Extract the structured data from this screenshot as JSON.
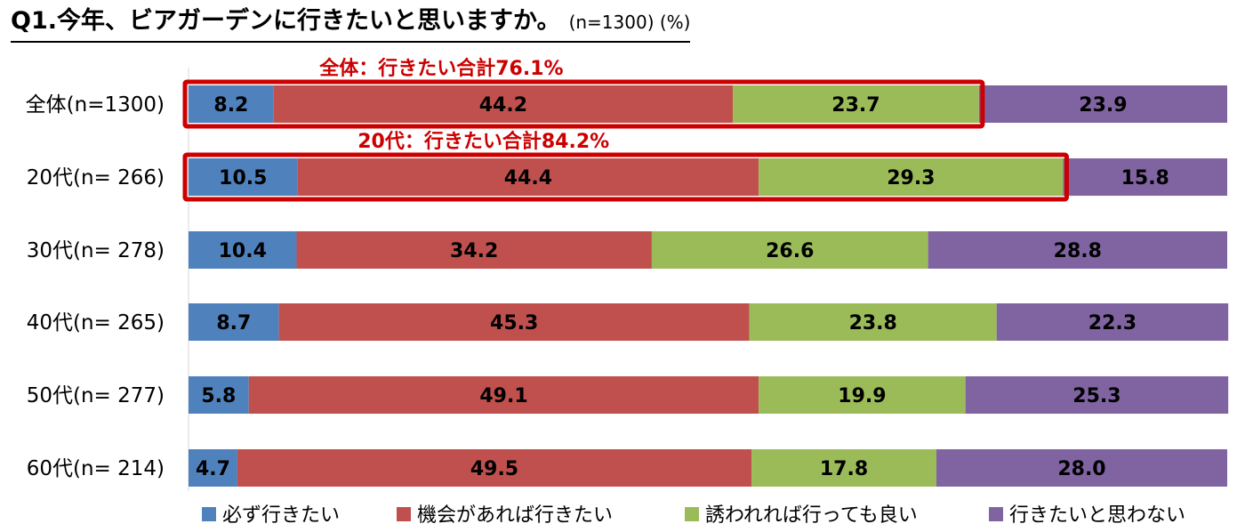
{
  "title": {
    "main": "Q1.今年、ビアガーデンに行きたいと思いますか。",
    "sub": "(n=1300) (%)"
  },
  "colors": {
    "highlight": "#cc0000",
    "series": [
      "#4f81bd",
      "#c0504d",
      "#9bbb59",
      "#8064a2"
    ]
  },
  "chart_data": {
    "type": "bar",
    "orientation": "horizontal",
    "stacked": true,
    "xlim": [
      0,
      100
    ],
    "categories": [
      "全体(n=1300)",
      "20代(n= 266)",
      "30代(n= 278)",
      "40代(n= 265)",
      "50代(n= 277)",
      "60代(n= 214)"
    ],
    "series": [
      {
        "name": "必ず行きたい",
        "values": [
          8.2,
          10.5,
          10.4,
          8.7,
          5.8,
          4.7
        ]
      },
      {
        "name": "機会があれば行きたい",
        "values": [
          44.2,
          44.4,
          34.2,
          45.3,
          49.1,
          49.5
        ]
      },
      {
        "name": "誘われれば行っても良い",
        "values": [
          23.7,
          29.3,
          26.6,
          23.8,
          19.9,
          17.8
        ]
      },
      {
        "name": "行きたいと思わない",
        "values": [
          23.9,
          15.8,
          28.8,
          22.3,
          25.3,
          28.0
        ]
      }
    ],
    "value_labels": [
      [
        "8.2",
        "44.2",
        "23.7",
        "23.9"
      ],
      [
        "10.5",
        "44.4",
        "29.3",
        "15.8"
      ],
      [
        "10.4",
        "34.2",
        "26.6",
        "28.8"
      ],
      [
        "8.7",
        "45.3",
        "23.8",
        "22.3"
      ],
      [
        "5.8",
        "49.1",
        "19.9",
        "25.3"
      ],
      [
        "4.7",
        "49.5",
        "17.8",
        "28.0"
      ]
    ],
    "annotations": [
      {
        "category_index": 0,
        "series_span": 3,
        "text": "全体：行きたい合計76.1%"
      },
      {
        "category_index": 1,
        "series_span": 3,
        "text": "20代：行きたい合計84.2%"
      }
    ],
    "legend_position": "bottom",
    "grid": false
  }
}
